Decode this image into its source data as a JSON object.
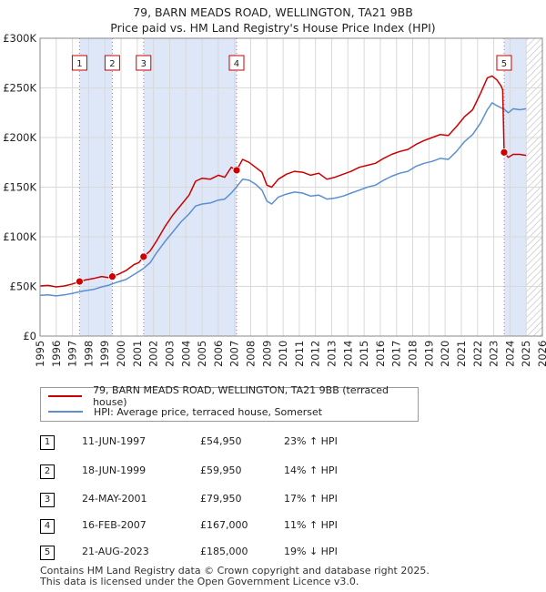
{
  "title_line1": "79, BARN MEADS ROAD, WELLINGTON, TA21 9BB",
  "title_line2": "Price paid vs. HM Land Registry's House Price Index (HPI)",
  "colors": {
    "property": "#cc0000",
    "hpi": "#5b8fd0",
    "shade": "#dde7f7",
    "marker_fill": "#cc0000"
  },
  "chart_data": {
    "type": "line",
    "title": "Price paid vs. HM Land Registry's House Price Index (HPI)",
    "xlabel": "",
    "ylabel": "",
    "xlim": [
      1995,
      2026
    ],
    "ylim": [
      0,
      300000
    ],
    "y_ticks": [
      {
        "value": 0,
        "label": "£0"
      },
      {
        "value": 50000,
        "label": "£50K"
      },
      {
        "value": 100000,
        "label": "£100K"
      },
      {
        "value": 150000,
        "label": "£150K"
      },
      {
        "value": 200000,
        "label": "£200K"
      },
      {
        "value": 250000,
        "label": "£250K"
      },
      {
        "value": 300000,
        "label": "£300K"
      }
    ],
    "x_ticks": [
      "1995",
      "1996",
      "1997",
      "1998",
      "1999",
      "2000",
      "2001",
      "2002",
      "2003",
      "2004",
      "2005",
      "2006",
      "2007",
      "2008",
      "2009",
      "2010",
      "2011",
      "2012",
      "2013",
      "2014",
      "2015",
      "2016",
      "2017",
      "2018",
      "2019",
      "2020",
      "2021",
      "2022",
      "2023",
      "2024",
      "2025",
      "2026"
    ],
    "shaded_ranges": [
      [
        1997.44,
        1999.46
      ],
      [
        2001.39,
        2007.13
      ],
      [
        2023.64,
        2025.0
      ]
    ],
    "hatched_range": [
      2025.0,
      2026.0
    ],
    "series": [
      {
        "name": "79, BARN MEADS ROAD, WELLINGTON, TA21 9BB (terraced house)",
        "color": "#cc0000",
        "points": [
          [
            1995.0,
            50500
          ],
          [
            1995.5,
            51000
          ],
          [
            1996.0,
            49500
          ],
          [
            1996.5,
            50500
          ],
          [
            1997.0,
            52500
          ],
          [
            1997.44,
            54950
          ],
          [
            1997.8,
            56500
          ],
          [
            1998.3,
            58000
          ],
          [
            1998.8,
            60000
          ],
          [
            1999.2,
            59000
          ],
          [
            1999.46,
            59950
          ],
          [
            1999.8,
            62000
          ],
          [
            2000.3,
            66000
          ],
          [
            2000.8,
            72000
          ],
          [
            2001.1,
            74000
          ],
          [
            2001.39,
            79950
          ],
          [
            2001.8,
            86000
          ],
          [
            2002.2,
            96000
          ],
          [
            2002.7,
            110000
          ],
          [
            2003.2,
            122000
          ],
          [
            2003.7,
            132000
          ],
          [
            2004.2,
            142000
          ],
          [
            2004.6,
            156000
          ],
          [
            2005.0,
            159000
          ],
          [
            2005.5,
            158000
          ],
          [
            2006.0,
            162000
          ],
          [
            2006.4,
            160000
          ],
          [
            2006.8,
            170000
          ],
          [
            2007.13,
            167000
          ],
          [
            2007.5,
            178000
          ],
          [
            2007.9,
            175000
          ],
          [
            2008.3,
            170000
          ],
          [
            2008.7,
            165000
          ],
          [
            2009.0,
            152000
          ],
          [
            2009.3,
            150000
          ],
          [
            2009.7,
            158000
          ],
          [
            2010.2,
            163000
          ],
          [
            2010.7,
            166000
          ],
          [
            2011.2,
            165000
          ],
          [
            2011.7,
            162000
          ],
          [
            2012.2,
            164000
          ],
          [
            2012.7,
            158000
          ],
          [
            2013.2,
            160000
          ],
          [
            2013.7,
            163000
          ],
          [
            2014.2,
            166000
          ],
          [
            2014.7,
            170000
          ],
          [
            2015.2,
            172000
          ],
          [
            2015.7,
            174000
          ],
          [
            2016.2,
            179000
          ],
          [
            2016.7,
            183000
          ],
          [
            2017.2,
            186000
          ],
          [
            2017.7,
            188000
          ],
          [
            2018.2,
            193000
          ],
          [
            2018.7,
            197000
          ],
          [
            2019.2,
            200000
          ],
          [
            2019.7,
            203000
          ],
          [
            2020.2,
            202000
          ],
          [
            2020.7,
            211000
          ],
          [
            2021.2,
            221000
          ],
          [
            2021.7,
            228000
          ],
          [
            2022.2,
            245000
          ],
          [
            2022.6,
            260000
          ],
          [
            2022.9,
            262000
          ],
          [
            2023.2,
            258000
          ],
          [
            2023.45,
            252000
          ],
          [
            2023.55,
            248000
          ],
          [
            2023.64,
            185000
          ],
          [
            2023.9,
            180000
          ],
          [
            2024.2,
            183000
          ],
          [
            2024.6,
            183000
          ],
          [
            2025.0,
            182000
          ]
        ]
      },
      {
        "name": "HPI: Average price, terraced house, Somerset",
        "color": "#5b8fd0",
        "points": [
          [
            1995.0,
            41000
          ],
          [
            1995.5,
            41500
          ],
          [
            1996.0,
            40500
          ],
          [
            1996.5,
            41500
          ],
          [
            1997.0,
            43000
          ],
          [
            1997.44,
            44700
          ],
          [
            1997.8,
            45800
          ],
          [
            1998.3,
            47000
          ],
          [
            1998.8,
            49500
          ],
          [
            1999.2,
            51000
          ],
          [
            1999.46,
            52600
          ],
          [
            1999.8,
            54500
          ],
          [
            2000.3,
            57000
          ],
          [
            2000.8,
            62000
          ],
          [
            2001.1,
            65000
          ],
          [
            2001.39,
            68300
          ],
          [
            2001.8,
            74000
          ],
          [
            2002.2,
            84000
          ],
          [
            2002.7,
            95000
          ],
          [
            2003.2,
            105000
          ],
          [
            2003.7,
            115000
          ],
          [
            2004.2,
            123000
          ],
          [
            2004.6,
            131000
          ],
          [
            2005.0,
            133000
          ],
          [
            2005.5,
            134000
          ],
          [
            2006.0,
            137000
          ],
          [
            2006.4,
            138000
          ],
          [
            2006.8,
            144000
          ],
          [
            2007.13,
            150400
          ],
          [
            2007.5,
            158000
          ],
          [
            2007.9,
            157000
          ],
          [
            2008.3,
            153000
          ],
          [
            2008.7,
            147000
          ],
          [
            2009.0,
            136000
          ],
          [
            2009.3,
            133000
          ],
          [
            2009.7,
            140000
          ],
          [
            2010.2,
            143000
          ],
          [
            2010.7,
            145000
          ],
          [
            2011.2,
            144000
          ],
          [
            2011.7,
            141000
          ],
          [
            2012.2,
            142000
          ],
          [
            2012.7,
            138000
          ],
          [
            2013.2,
            139000
          ],
          [
            2013.7,
            141000
          ],
          [
            2014.2,
            144000
          ],
          [
            2014.7,
            147000
          ],
          [
            2015.2,
            150000
          ],
          [
            2015.7,
            152000
          ],
          [
            2016.2,
            157000
          ],
          [
            2016.7,
            161000
          ],
          [
            2017.2,
            164000
          ],
          [
            2017.7,
            166000
          ],
          [
            2018.2,
            171000
          ],
          [
            2018.7,
            174000
          ],
          [
            2019.2,
            176000
          ],
          [
            2019.7,
            179000
          ],
          [
            2020.2,
            178000
          ],
          [
            2020.7,
            186000
          ],
          [
            2021.2,
            196000
          ],
          [
            2021.7,
            203000
          ],
          [
            2022.2,
            215000
          ],
          [
            2022.6,
            228000
          ],
          [
            2022.9,
            235000
          ],
          [
            2023.2,
            232000
          ],
          [
            2023.64,
            228400
          ],
          [
            2023.9,
            225000
          ],
          [
            2024.2,
            229000
          ],
          [
            2024.6,
            228000
          ],
          [
            2025.0,
            229000
          ]
        ]
      }
    ],
    "sales": [
      {
        "id": "1",
        "x": 1997.44,
        "price": 54950
      },
      {
        "id": "2",
        "x": 1999.46,
        "price": 59950
      },
      {
        "id": "3",
        "x": 2001.39,
        "price": 79950
      },
      {
        "id": "4",
        "x": 2007.13,
        "price": 167000
      },
      {
        "id": "5",
        "x": 2023.64,
        "price": 185000
      }
    ]
  },
  "legend": {
    "property_label": "79, BARN MEADS ROAD, WELLINGTON, TA21 9BB (terraced house)",
    "hpi_label": "HPI: Average price, terraced house, Somerset"
  },
  "transactions": [
    {
      "num": "1",
      "date": "11-JUN-1997",
      "price": "£54,950",
      "hpi": "23% ↑ HPI"
    },
    {
      "num": "2",
      "date": "18-JUN-1999",
      "price": "£59,950",
      "hpi": "14% ↑ HPI"
    },
    {
      "num": "3",
      "date": "24-MAY-2001",
      "price": "£79,950",
      "hpi": "17% ↑ HPI"
    },
    {
      "num": "4",
      "date": "16-FEB-2007",
      "price": "£167,000",
      "hpi": "11% ↑ HPI"
    },
    {
      "num": "5",
      "date": "21-AUG-2023",
      "price": "£185,000",
      "hpi": "19% ↓ HPI"
    }
  ],
  "footer": {
    "line1": "Contains HM Land Registry data © Crown copyright and database right 2025.",
    "line2": "This data is licensed under the Open Government Licence v3.0."
  }
}
